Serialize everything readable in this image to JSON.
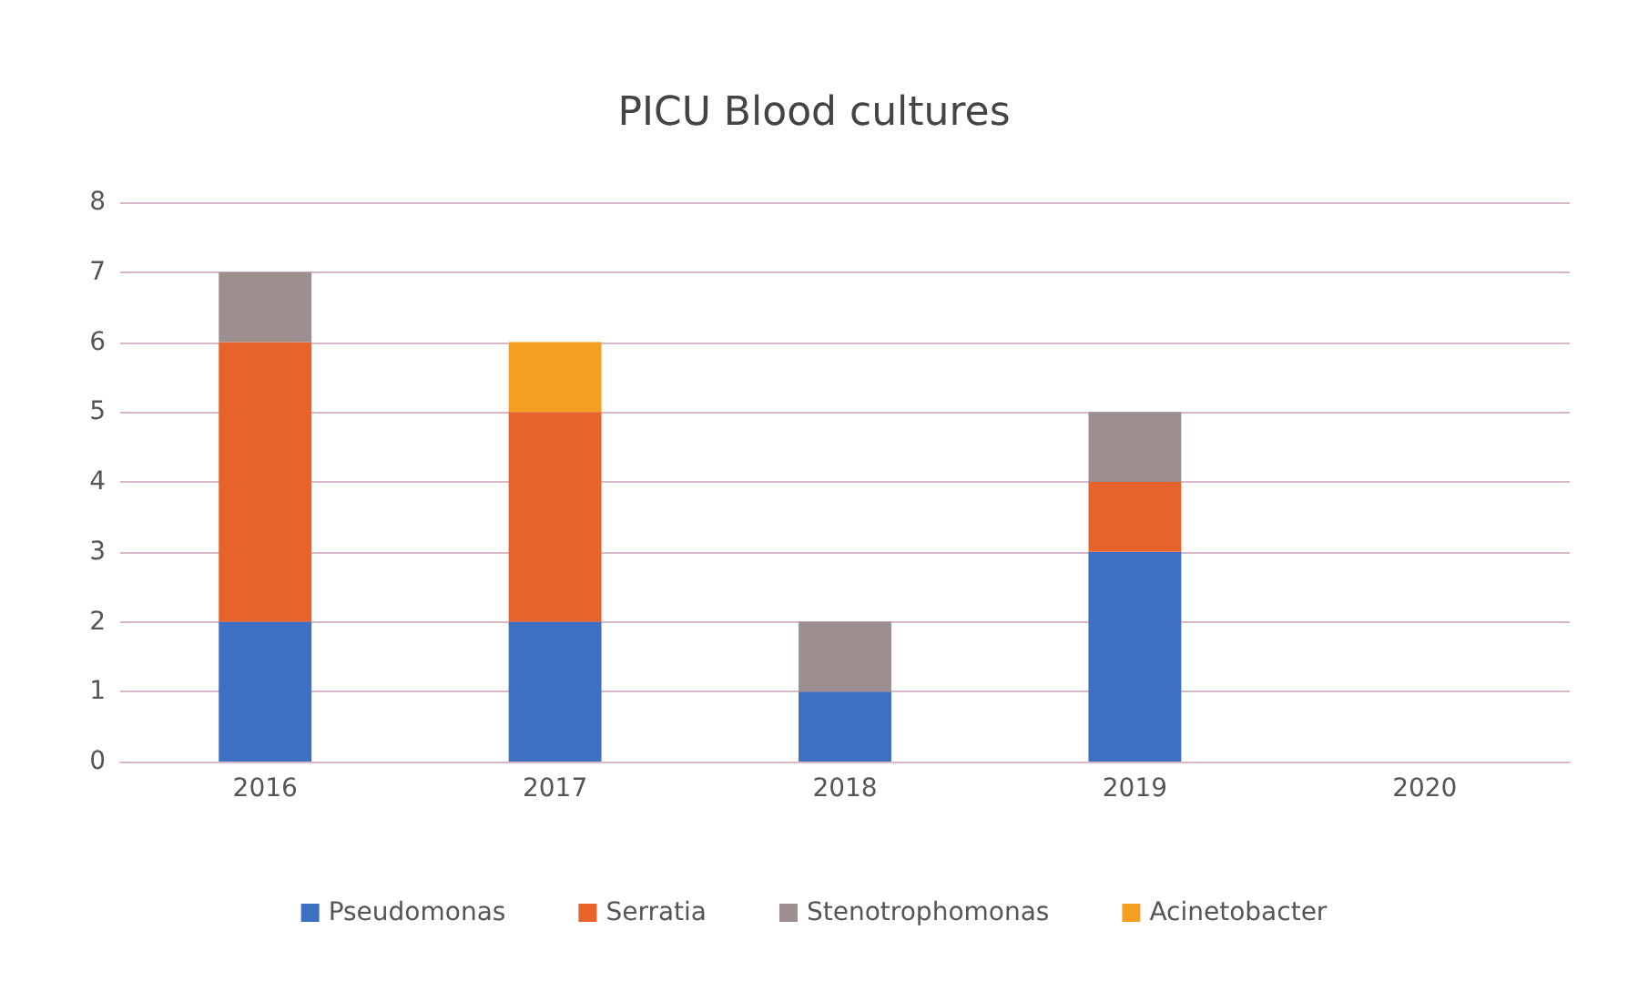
{
  "chart_data": {
    "type": "bar",
    "title": "PICU Blood cultures",
    "stacked": true,
    "categories": [
      "2016",
      "2017",
      "2018",
      "2019",
      "2020"
    ],
    "series": [
      {
        "name": "Pseudomonas",
        "color": "#3d6fc3",
        "values": [
          2,
          2,
          1,
          3,
          0
        ]
      },
      {
        "name": "Serratia",
        "color": "#e8632b",
        "values": [
          4,
          3,
          0,
          1,
          0
        ]
      },
      {
        "name": "Stenotrophomonas",
        "color": "#9d8f8f",
        "values": [
          1,
          0,
          1,
          1,
          0
        ]
      },
      {
        "name": "Acinetobacter",
        "color": "#f3a022",
        "values": [
          0,
          1,
          0,
          0,
          0
        ]
      }
    ],
    "ylim": [
      0,
      8
    ],
    "yticks": [
      0,
      1,
      2,
      3,
      4,
      5,
      6,
      7,
      8
    ],
    "grid": "y",
    "legend": "bottom"
  }
}
